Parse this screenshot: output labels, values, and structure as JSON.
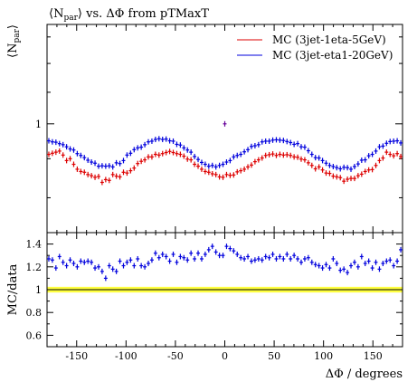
{
  "chart_data": [
    {
      "type": "scatter",
      "title": "⟨N_par⟩ vs. ΔΦ from pTMaxT",
      "title_parts": {
        "math": "⟨N",
        "sub": "par",
        "close": "⟩",
        "rest": " vs. ΔΦ from pTMaxT"
      },
      "ylabel": "⟨N_par⟩",
      "ylabel_parts": {
        "math": "⟨N",
        "sub": "par",
        "close": "⟩"
      },
      "xlabel": "",
      "xlim": [
        -180,
        180
      ],
      "ylim": [
        0.72,
        1.35
      ],
      "yscale": "log",
      "yticks": [
        1
      ],
      "ytick_labels": [
        "1"
      ],
      "legend_position": "top-right",
      "series": [
        {
          "name": "MC (3jet-1eta-5GeV)",
          "color": "#dd0000",
          "x": [
            -178.2,
            -174.6,
            -171.0,
            -167.4,
            -163.8,
            -160.2,
            -156.6,
            -153.0,
            -149.4,
            -145.8,
            -142.2,
            -138.6,
            -135.0,
            -131.4,
            -127.8,
            -124.2,
            -120.6,
            -117.0,
            -113.4,
            -109.8,
            -106.2,
            -102.6,
            -99.0,
            -95.4,
            -91.8,
            -88.2,
            -84.6,
            -81.0,
            -77.4,
            -73.8,
            -70.2,
            -66.6,
            -63.0,
            -59.4,
            -55.8,
            -52.2,
            -48.6,
            -45.0,
            -41.4,
            -37.8,
            -34.2,
            -30.6,
            -27.0,
            -23.4,
            -19.8,
            -16.2,
            -12.6,
            -9.0,
            -5.4,
            -1.8,
            1.8,
            5.4,
            9.0,
            12.6,
            16.2,
            19.8,
            23.4,
            27.0,
            30.6,
            34.2,
            37.8,
            41.4,
            45.0,
            48.6,
            52.2,
            55.8,
            59.4,
            63.0,
            66.6,
            70.2,
            73.8,
            77.4,
            81.0,
            84.6,
            88.2,
            91.8,
            95.4,
            99.0,
            102.6,
            106.2,
            109.8,
            113.4,
            117.0,
            120.6,
            124.2,
            127.8,
            131.4,
            135.0,
            138.6,
            142.2,
            145.8,
            149.4,
            153.0,
            156.6,
            160.2,
            163.8,
            167.4,
            171.0,
            174.6,
            178.2
          ],
          "y": [
            0.912,
            0.915,
            0.918,
            0.921,
            0.91,
            0.895,
            0.9,
            0.885,
            0.872,
            0.866,
            0.864,
            0.858,
            0.855,
            0.851,
            0.853,
            0.838,
            0.845,
            0.843,
            0.858,
            0.854,
            0.852,
            0.864,
            0.862,
            0.868,
            0.875,
            0.887,
            0.893,
            0.897,
            0.905,
            0.905,
            0.912,
            0.91,
            0.914,
            0.917,
            0.92,
            0.917,
            0.914,
            0.912,
            0.907,
            0.899,
            0.897,
            0.885,
            0.88,
            0.872,
            0.866,
            0.864,
            0.86,
            0.858,
            0.852,
            0.851,
            0.858,
            0.856,
            0.857,
            0.865,
            0.868,
            0.872,
            0.878,
            0.883,
            0.892,
            0.897,
            0.902,
            0.909,
            0.911,
            0.913,
            0.909,
            0.912,
            0.91,
            0.911,
            0.909,
            0.905,
            0.904,
            0.899,
            0.897,
            0.889,
            0.882,
            0.873,
            0.878,
            0.87,
            0.862,
            0.861,
            0.854,
            0.852,
            0.85,
            0.841,
            0.846,
            0.848,
            0.848,
            0.855,
            0.859,
            0.866,
            0.87,
            0.871,
            0.882,
            0.895,
            0.902,
            0.918,
            0.912,
            0.908,
            0.914,
            0.906
          ]
        },
        {
          "name": "MC (3jet-eta1-20GeV)",
          "color": "#0000dd",
          "x": [
            -178.2,
            -174.6,
            -171.0,
            -167.4,
            -163.8,
            -160.2,
            -156.6,
            -153.0,
            -149.4,
            -145.8,
            -142.2,
            -138.6,
            -135.0,
            -131.4,
            -127.8,
            -124.2,
            -120.6,
            -117.0,
            -113.4,
            -109.8,
            -106.2,
            -102.6,
            -99.0,
            -95.4,
            -91.8,
            -88.2,
            -84.6,
            -81.0,
            -77.4,
            -73.8,
            -70.2,
            -66.6,
            -63.0,
            -59.4,
            -55.8,
            -52.2,
            -48.6,
            -45.0,
            -41.4,
            -37.8,
            -34.2,
            -30.6,
            -27.0,
            -23.4,
            -19.8,
            -16.2,
            -12.6,
            -9.0,
            -5.4,
            -1.8,
            1.8,
            5.4,
            9.0,
            12.6,
            16.2,
            19.8,
            23.4,
            27.0,
            30.6,
            34.2,
            37.8,
            41.4,
            45.0,
            48.6,
            52.2,
            55.8,
            59.4,
            63.0,
            66.6,
            70.2,
            73.8,
            77.4,
            81.0,
            84.6,
            88.2,
            91.8,
            95.4,
            99.0,
            102.6,
            106.2,
            109.8,
            113.4,
            117.0,
            120.6,
            124.2,
            127.8,
            131.4,
            135.0,
            138.6,
            142.2,
            145.8,
            149.4,
            153.0,
            156.6,
            160.2,
            163.8,
            167.4,
            171.0,
            174.6,
            178.2
          ],
          "y": [
            0.95,
            0.947,
            0.946,
            0.942,
            0.939,
            0.933,
            0.927,
            0.924,
            0.914,
            0.909,
            0.903,
            0.896,
            0.891,
            0.888,
            0.88,
            0.881,
            0.88,
            0.881,
            0.878,
            0.889,
            0.887,
            0.895,
            0.91,
            0.915,
            0.925,
            0.93,
            0.932,
            0.939,
            0.947,
            0.949,
            0.954,
            0.956,
            0.954,
            0.955,
            0.95,
            0.949,
            0.94,
            0.938,
            0.93,
            0.924,
            0.918,
            0.906,
            0.898,
            0.89,
            0.885,
            0.88,
            0.882,
            0.878,
            0.882,
            0.885,
            0.891,
            0.895,
            0.905,
            0.909,
            0.912,
            0.919,
            0.925,
            0.934,
            0.936,
            0.939,
            0.947,
            0.949,
            0.949,
            0.952,
            0.953,
            0.952,
            0.951,
            0.948,
            0.945,
            0.94,
            0.942,
            0.933,
            0.932,
            0.922,
            0.912,
            0.903,
            0.902,
            0.895,
            0.888,
            0.882,
            0.879,
            0.876,
            0.873,
            0.877,
            0.876,
            0.872,
            0.879,
            0.886,
            0.896,
            0.897,
            0.908,
            0.912,
            0.921,
            0.933,
            0.935,
            0.943,
            0.948,
            0.949,
            0.95,
            0.944
          ]
        },
        {
          "name": "",
          "color": "#660099",
          "x": [
            0.0
          ],
          "y": [
            1.0
          ]
        }
      ]
    },
    {
      "type": "scatter",
      "title": "",
      "ylabel": "MC/data",
      "xlabel": "ΔΦ / degrees",
      "xlim": [
        -180,
        180
      ],
      "ylim": [
        0.5,
        1.5
      ],
      "yscale": "linear",
      "xticks": [
        -150,
        -100,
        -50,
        0,
        50,
        100,
        150
      ],
      "yticks": [
        0.6,
        0.8,
        1.0,
        1.2,
        1.4
      ],
      "ytick_labels": [
        "0.6",
        "0.8",
        "1",
        "1.2",
        "1.4"
      ],
      "reference_line": 1.0,
      "band_color": "#ffff00",
      "band_halfwidth": 0.025,
      "series": [
        {
          "name": "",
          "color": "#0000dd",
          "x": [
            -178.2,
            -174.6,
            -171.0,
            -167.4,
            -163.8,
            -160.2,
            -156.6,
            -153.0,
            -149.4,
            -145.8,
            -142.2,
            -138.6,
            -135.0,
            -131.4,
            -127.8,
            -124.2,
            -120.6,
            -117.0,
            -113.4,
            -109.8,
            -106.2,
            -102.6,
            -99.0,
            -95.4,
            -91.8,
            -88.2,
            -84.6,
            -81.0,
            -77.4,
            -73.8,
            -70.2,
            -66.6,
            -63.0,
            -59.4,
            -55.8,
            -52.2,
            -48.6,
            -45.0,
            -41.4,
            -37.8,
            -34.2,
            -30.6,
            -27.0,
            -23.4,
            -19.8,
            -16.2,
            -12.6,
            -9.0,
            -5.4,
            -1.8,
            1.8,
            5.4,
            9.0,
            12.6,
            16.2,
            19.8,
            23.4,
            27.0,
            30.6,
            34.2,
            37.8,
            41.4,
            45.0,
            48.6,
            52.2,
            55.8,
            59.4,
            63.0,
            66.6,
            70.2,
            73.8,
            77.4,
            81.0,
            84.6,
            88.2,
            91.8,
            95.4,
            99.0,
            102.6,
            106.2,
            109.8,
            113.4,
            117.0,
            120.6,
            124.2,
            127.8,
            131.4,
            135.0,
            138.6,
            142.2,
            145.8,
            149.4,
            153.0,
            156.6,
            160.2,
            163.8,
            167.4,
            171.0,
            174.6,
            178.2
          ],
          "y": [
            1.27,
            1.26,
            1.19,
            1.29,
            1.24,
            1.21,
            1.26,
            1.23,
            1.2,
            1.25,
            1.24,
            1.25,
            1.24,
            1.19,
            1.2,
            1.16,
            1.1,
            1.21,
            1.18,
            1.16,
            1.25,
            1.21,
            1.24,
            1.26,
            1.21,
            1.27,
            1.21,
            1.2,
            1.23,
            1.26,
            1.32,
            1.28,
            1.31,
            1.29,
            1.25,
            1.31,
            1.24,
            1.29,
            1.28,
            1.26,
            1.32,
            1.27,
            1.32,
            1.27,
            1.31,
            1.35,
            1.38,
            1.33,
            1.3,
            1.3,
            1.38,
            1.36,
            1.34,
            1.31,
            1.28,
            1.27,
            1.29,
            1.25,
            1.26,
            1.27,
            1.26,
            1.29,
            1.28,
            1.31,
            1.27,
            1.29,
            1.27,
            1.31,
            1.27,
            1.3,
            1.27,
            1.24,
            1.27,
            1.28,
            1.24,
            1.22,
            1.21,
            1.19,
            1.22,
            1.19,
            1.27,
            1.23,
            1.17,
            1.18,
            1.15,
            1.21,
            1.24,
            1.2,
            1.29,
            1.23,
            1.25,
            1.19,
            1.24,
            1.18,
            1.23,
            1.25,
            1.26,
            1.21,
            1.25,
            1.35
          ]
        }
      ]
    }
  ]
}
